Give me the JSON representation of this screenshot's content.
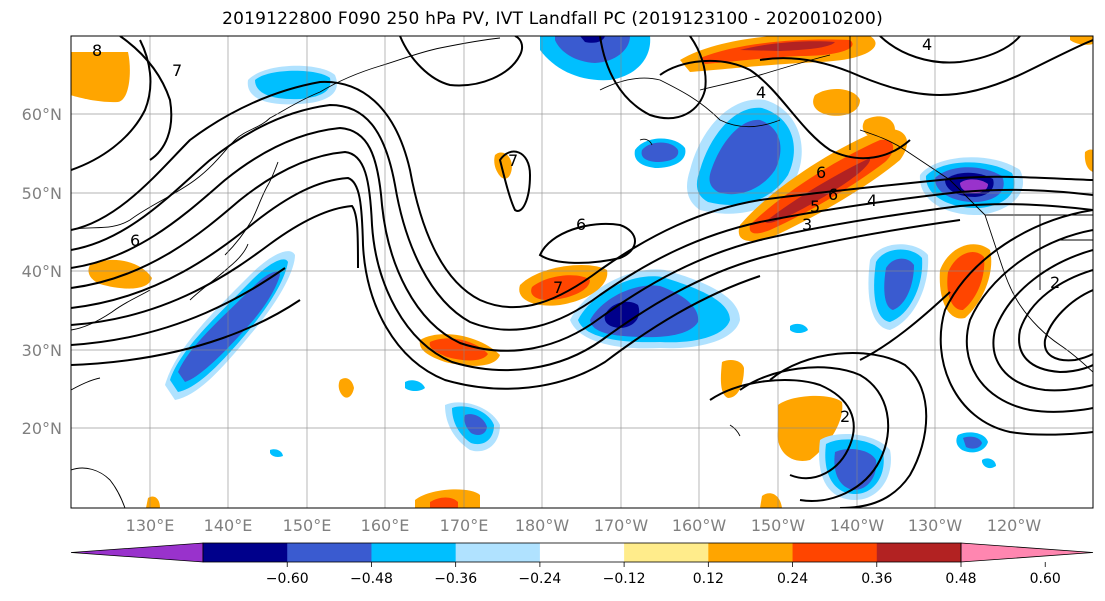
{
  "title": "2019122800 F090 250 hPa PV, IVT Landfall PC (2019123100 - 2020010200)",
  "lat_labels": [
    "60°N",
    "50°N",
    "40°N",
    "30°N",
    "20°N"
  ],
  "lon_labels": [
    "130°E",
    "140°E",
    "150°E",
    "160°E",
    "170°E",
    "180°W",
    "170°W",
    "160°W",
    "150°W",
    "140°W",
    "130°W",
    "120°W"
  ],
  "colorbar": {
    "colors": [
      "#9932CC",
      "#00008B",
      "#3A5BD0",
      "#00BFFF",
      "#B0E2FF",
      "#FFFFFF",
      "#FFEC8B",
      "#FFA500",
      "#FF4500",
      "#B22222",
      "#FF86B0"
    ],
    "tick_labels": [
      "−0.60",
      "−0.48",
      "−0.36",
      "−0.24",
      "−0.12",
      "0.12",
      "0.24",
      "0.36",
      "0.48",
      "0.60"
    ]
  },
  "contour_labels": [
    "8",
    "7",
    "6",
    "6",
    "7",
    "7",
    "5",
    "6",
    "4",
    "3",
    "6",
    "4",
    "4",
    "2",
    "2"
  ]
}
